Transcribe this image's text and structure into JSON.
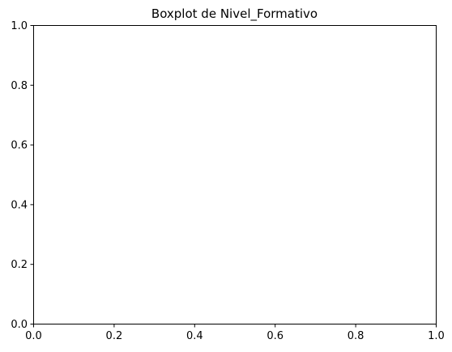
{
  "chart_data": {
    "type": "box",
    "title": "Boxplot de Nivel_Formativo",
    "xlabel": "",
    "ylabel": "",
    "xlim": [
      0,
      1
    ],
    "ylim": [
      0,
      1
    ],
    "xticks": [
      "0.0",
      "0.2",
      "0.4",
      "0.6",
      "0.8",
      "1.0"
    ],
    "yticks": [
      "0.0",
      "0.2",
      "0.4",
      "0.6",
      "0.8",
      "1.0"
    ],
    "series": [],
    "grid": false,
    "legend": "none"
  }
}
